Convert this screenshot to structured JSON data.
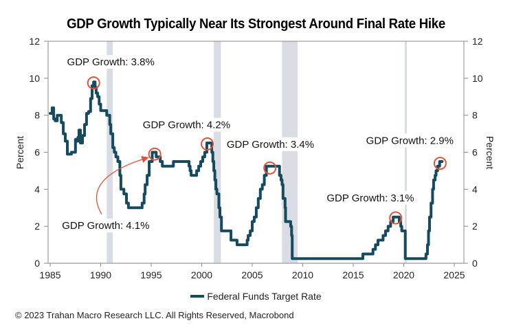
{
  "chart_data": {
    "type": "line",
    "title": "GDP Growth Typically Near Its Strongest Around Final Rate Hike",
    "xlabel": "",
    "ylabel": "Percent",
    "ylabel_right": "Percent",
    "xlim": [
      1985,
      2025.9
    ],
    "ylim": [
      0,
      12
    ],
    "x_ticks": [
      1985,
      1990,
      1995,
      2000,
      2005,
      2010,
      2015,
      2020,
      2025
    ],
    "y_ticks": [
      0,
      2,
      4,
      6,
      8,
      10,
      12
    ],
    "grid": false,
    "legend_position": "bottom-center",
    "series": [
      {
        "name": "Federal Funds Target Rate",
        "color": "#164a5e",
        "step": true,
        "x": [
          1985.0,
          1985.2,
          1985.35,
          1985.5,
          1985.7,
          1985.9,
          1986.1,
          1986.3,
          1986.5,
          1986.7,
          1986.9,
          1987.1,
          1987.3,
          1987.5,
          1987.6,
          1987.75,
          1987.85,
          1988.0,
          1988.2,
          1988.4,
          1988.6,
          1988.8,
          1989.0,
          1989.15,
          1989.3,
          1989.45,
          1989.55,
          1989.7,
          1989.85,
          1990.0,
          1990.3,
          1990.6,
          1990.9,
          1991.0,
          1991.2,
          1991.35,
          1991.5,
          1991.7,
          1991.9,
          1992.0,
          1992.3,
          1992.55,
          1992.75,
          1994.1,
          1994.3,
          1994.4,
          1994.6,
          1994.8,
          1995.1,
          1995.5,
          1995.9,
          1996.1,
          1997.2,
          1998.75,
          1998.85,
          1998.95,
          1999.5,
          1999.7,
          1999.9,
          2000.1,
          2000.3,
          2000.5,
          2001.0,
          2001.1,
          2001.2,
          2001.3,
          2001.4,
          2001.5,
          2001.7,
          2001.8,
          2001.95,
          2002.9,
          2003.5,
          2004.5,
          2004.6,
          2004.8,
          2005.0,
          2005.2,
          2005.4,
          2005.6,
          2005.8,
          2006.0,
          2006.2,
          2006.4,
          2007.7,
          2007.85,
          2007.95,
          2008.05,
          2008.25,
          2008.3,
          2008.8,
          2008.9,
          2008.96,
          2015.95,
          2016.95,
          2017.2,
          2017.45,
          2017.95,
          2018.2,
          2018.45,
          2018.7,
          2018.95,
          2019.55,
          2019.7,
          2019.8,
          2020.15,
          2020.2,
          2022.2,
          2022.35,
          2022.45,
          2022.55,
          2022.7,
          2022.85,
          2022.95,
          2023.1,
          2023.2,
          2023.35,
          2023.55,
          2023.8
        ],
        "y": [
          8.1,
          8.4,
          7.8,
          7.7,
          8.0,
          8.0,
          7.6,
          7.0,
          6.6,
          5.9,
          5.9,
          6.0,
          6.0,
          6.7,
          6.6,
          6.8,
          7.2,
          6.5,
          6.9,
          7.5,
          8.1,
          8.2,
          8.9,
          9.6,
          9.8,
          9.5,
          9.2,
          9.0,
          8.6,
          8.25,
          8.25,
          8.0,
          7.5,
          7.0,
          6.25,
          6.0,
          5.75,
          5.5,
          4.75,
          4.0,
          3.75,
          3.25,
          3.0,
          3.25,
          3.75,
          4.25,
          4.75,
          5.5,
          6.0,
          5.75,
          5.5,
          5.25,
          5.5,
          5.25,
          5.0,
          4.75,
          5.0,
          5.25,
          5.5,
          5.75,
          6.0,
          6.5,
          6.0,
          5.5,
          5.0,
          4.5,
          4.0,
          3.75,
          3.0,
          2.5,
          1.75,
          1.25,
          1.0,
          1.25,
          1.5,
          1.75,
          2.25,
          2.5,
          3.0,
          3.5,
          4.0,
          4.25,
          4.75,
          5.25,
          4.75,
          4.5,
          4.25,
          3.5,
          3.0,
          2.25,
          2.0,
          1.5,
          0.25,
          0.5,
          0.75,
          1.0,
          1.25,
          1.5,
          1.75,
          2.0,
          2.25,
          2.5,
          2.25,
          2.0,
          1.75,
          0.25,
          0.25,
          0.5,
          1.0,
          1.75,
          2.5,
          3.25,
          4.0,
          4.5,
          4.75,
          5.0,
          5.25,
          5.5,
          5.5
        ]
      }
    ],
    "recession_bands": [
      [
        1990.6,
        1991.2
      ],
      [
        2001.2,
        2001.9
      ],
      [
        2007.95,
        2009.5
      ],
      [
        2020.1,
        2020.3
      ]
    ],
    "annotations": [
      {
        "text": "GDP Growth: 3.8%",
        "point": [
          1989.3,
          9.75
        ],
        "label_at": [
          1991.0,
          10.7
        ]
      },
      {
        "text": "GDP Growth: 4.1%",
        "point": [
          1995.35,
          5.9
        ],
        "label_at": [
          1990.5,
          1.85
        ],
        "arrow": true
      },
      {
        "text": "GDP Growth: 4.2%",
        "point": [
          2000.55,
          6.45
        ],
        "label_at": [
          1998.5,
          7.3
        ]
      },
      {
        "text": "GDP Growth: 3.4%",
        "point": [
          2006.75,
          5.15
        ],
        "label_at": [
          2006.8,
          6.25
        ]
      },
      {
        "text": "GDP Growth: 3.1%",
        "point": [
          2019.2,
          2.45
        ],
        "label_at": [
          2016.7,
          3.35
        ]
      },
      {
        "text": "GDP Growth: 2.9%",
        "point": [
          2023.6,
          5.4
        ],
        "label_at": [
          2020.6,
          6.45
        ]
      }
    ],
    "marker_color": "#e0513a",
    "band_color": "#d9dce3"
  },
  "legend": {
    "label": "Federal Funds Target Rate"
  },
  "footer": "© 2023 Trahan Macro Research LLC. All Rights Reserved, Macrobond"
}
